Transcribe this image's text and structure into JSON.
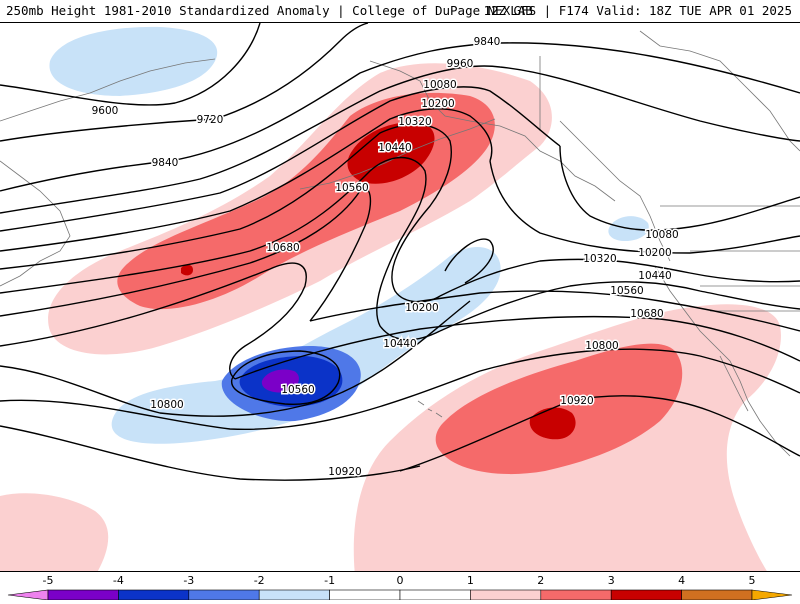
{
  "header": {
    "title": "250mb Height 1981-2010 Standardized Anomaly | College of DuPage NEXLAB",
    "run_info": "12Z GFS | F174 Valid: 18Z TUE APR 01 2025"
  },
  "colors": {
    "neg5": "#ee82ee",
    "neg4": "#7b00c8",
    "neg3": "#0b33c8",
    "neg2": "#4f78e8",
    "neg1": "#c8e2f8",
    "pos1": "#fbd0d0",
    "pos2": "#f56a6a",
    "pos3": "#c80000",
    "pos4": "#d07020",
    "pos5": "#f5a800",
    "contour": "#000000",
    "coast": "#777777"
  },
  "contours": [
    {
      "label": "9600"
    },
    {
      "label": "9720"
    },
    {
      "label": "9840"
    },
    {
      "label": "9840"
    },
    {
      "label": "9960"
    },
    {
      "label": "10080"
    },
    {
      "label": "10200"
    },
    {
      "label": "10320"
    },
    {
      "label": "10440"
    },
    {
      "label": "10560"
    },
    {
      "label": "10680"
    },
    {
      "label": "10200"
    },
    {
      "label": "10440"
    },
    {
      "label": "10560"
    },
    {
      "label": "10800"
    },
    {
      "label": "10080"
    },
    {
      "label": "10200"
    },
    {
      "label": "10320"
    },
    {
      "label": "10440"
    },
    {
      "label": "10560"
    },
    {
      "label": "10680"
    },
    {
      "label": "10800"
    },
    {
      "label": "10920"
    },
    {
      "label": "10920"
    }
  ],
  "colorbar": {
    "ticks": [
      "-5",
      "-4",
      "-3",
      "-2",
      "-1",
      "0",
      "1",
      "2",
      "3",
      "4",
      "5"
    ]
  }
}
